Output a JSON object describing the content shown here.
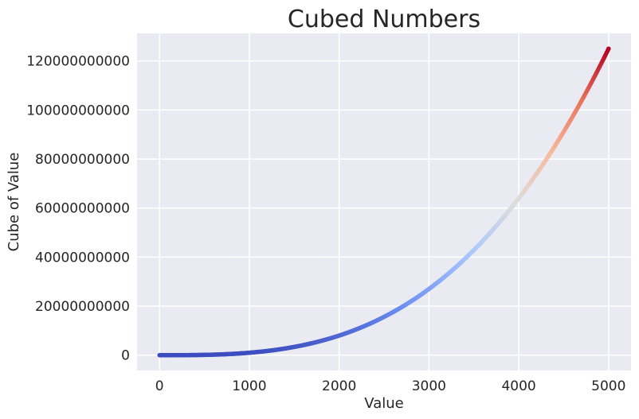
{
  "chart_data": {
    "type": "scatter",
    "title": "Cubed Numbers",
    "xlabel": "Value",
    "ylabel": "Cube of Value",
    "xlim": [
      -250,
      5250
    ],
    "ylim": [
      -6250000000,
      131250000000
    ],
    "xticks": [
      0,
      1000,
      2000,
      3000,
      4000,
      5000
    ],
    "xtick_labels": [
      "0",
      "1000",
      "2000",
      "3000",
      "4000",
      "5000"
    ],
    "yticks": [
      0,
      20000000000,
      40000000000,
      60000000000,
      80000000000,
      100000000000,
      120000000000
    ],
    "ytick_labels": [
      "0",
      "20000000000",
      "40000000000",
      "60000000000",
      "80000000000",
      "100000000000",
      "120000000000"
    ],
    "series": [
      {
        "x_range": [
          1,
          5000
        ],
        "y_formula": "x^3",
        "colormap": "coolwarm",
        "color_by": "y",
        "colormap_stops": [
          "#3b4cc0",
          "#6f92f3",
          "#aac7fd",
          "#dddcdc",
          "#f7b89c",
          "#e7745b",
          "#b40426"
        ]
      }
    ],
    "grid": true,
    "background": "#eaeaf2",
    "grid_color": "#ffffff",
    "legend": "none"
  }
}
